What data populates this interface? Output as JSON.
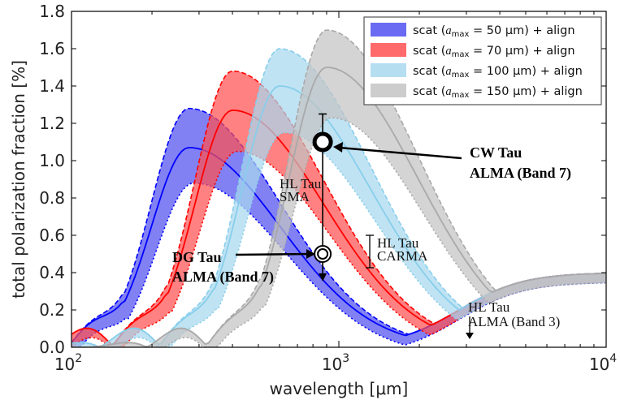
{
  "chart_data": {
    "type": "area",
    "xlabel": "wavelength [μm]",
    "ylabel": "total polarization fraction [%]",
    "xscale": "log",
    "xlim": [
      100,
      10000
    ],
    "ylim": [
      0,
      1.8
    ],
    "xticks": [
      {
        "base": "10",
        "exp": "2"
      },
      {
        "base": "10",
        "exp": "3"
      },
      {
        "base": "10",
        "exp": "4"
      }
    ],
    "yticks": [
      "0.0",
      "0.2",
      "0.4",
      "0.6",
      "0.8",
      "1.0",
      "1.2",
      "1.4",
      "1.6",
      "1.8"
    ],
    "legend_position": "top-right",
    "series": [
      {
        "label_prefix": "scat (",
        "label_var": "a",
        "label_sub": "max",
        "label_eq": " = 50 μm",
        "label_suffix": ") + align",
        "color": "#0000ff",
        "fill": "#5050f0",
        "peak_x": 275,
        "mid_peak": 1.07,
        "upper_peak": 1.28,
        "lower_peak": 0.93
      },
      {
        "label_prefix": "scat (",
        "label_var": "a",
        "label_sub": "max",
        "label_eq": " = 70 μm",
        "label_suffix": ") + align",
        "color": "#ff0000",
        "fill": "#ff5050",
        "peak_x": 400,
        "mid_peak": 1.27,
        "upper_peak": 1.48,
        "lower_peak": 1.1
      },
      {
        "label_prefix": "scat (",
        "label_var": "a",
        "label_sub": "max",
        "label_eq": " = 100 μm",
        "label_suffix": ") + align",
        "color": "#87ceeb",
        "fill": "#a8d8ee",
        "peak_x": 600,
        "mid_peak": 1.4,
        "upper_peak": 1.6,
        "lower_peak": 1.2
      },
      {
        "label_prefix": "scat (",
        "label_var": "a",
        "label_sub": "max",
        "label_eq": " = 150 μm",
        "label_suffix": ") + align",
        "color": "#a9a9a9",
        "fill": "#c4c4c4",
        "peak_x": 900,
        "mid_peak": 1.5,
        "upper_peak": 1.7,
        "lower_peak": 1.28
      }
    ],
    "observations": [
      {
        "name": "CW Tau",
        "x": 870,
        "y": 1.1,
        "err_low": 0.37,
        "err_high": 1.25
      },
      {
        "name": "DG Tau",
        "x": 870,
        "y": 0.5
      }
    ],
    "annotations": {
      "hl_sma": [
        "HL Tau",
        "SMA"
      ],
      "hl_carma": [
        "HL Tau",
        "CARMA"
      ],
      "hl_alma": [
        "HL Tau",
        "ALMA (Band 3)"
      ],
      "cw": [
        "CW Tau",
        "ALMA (Band 7)"
      ],
      "dg": [
        "DG  Tau",
        "ALMA (Band 7)"
      ]
    }
  }
}
